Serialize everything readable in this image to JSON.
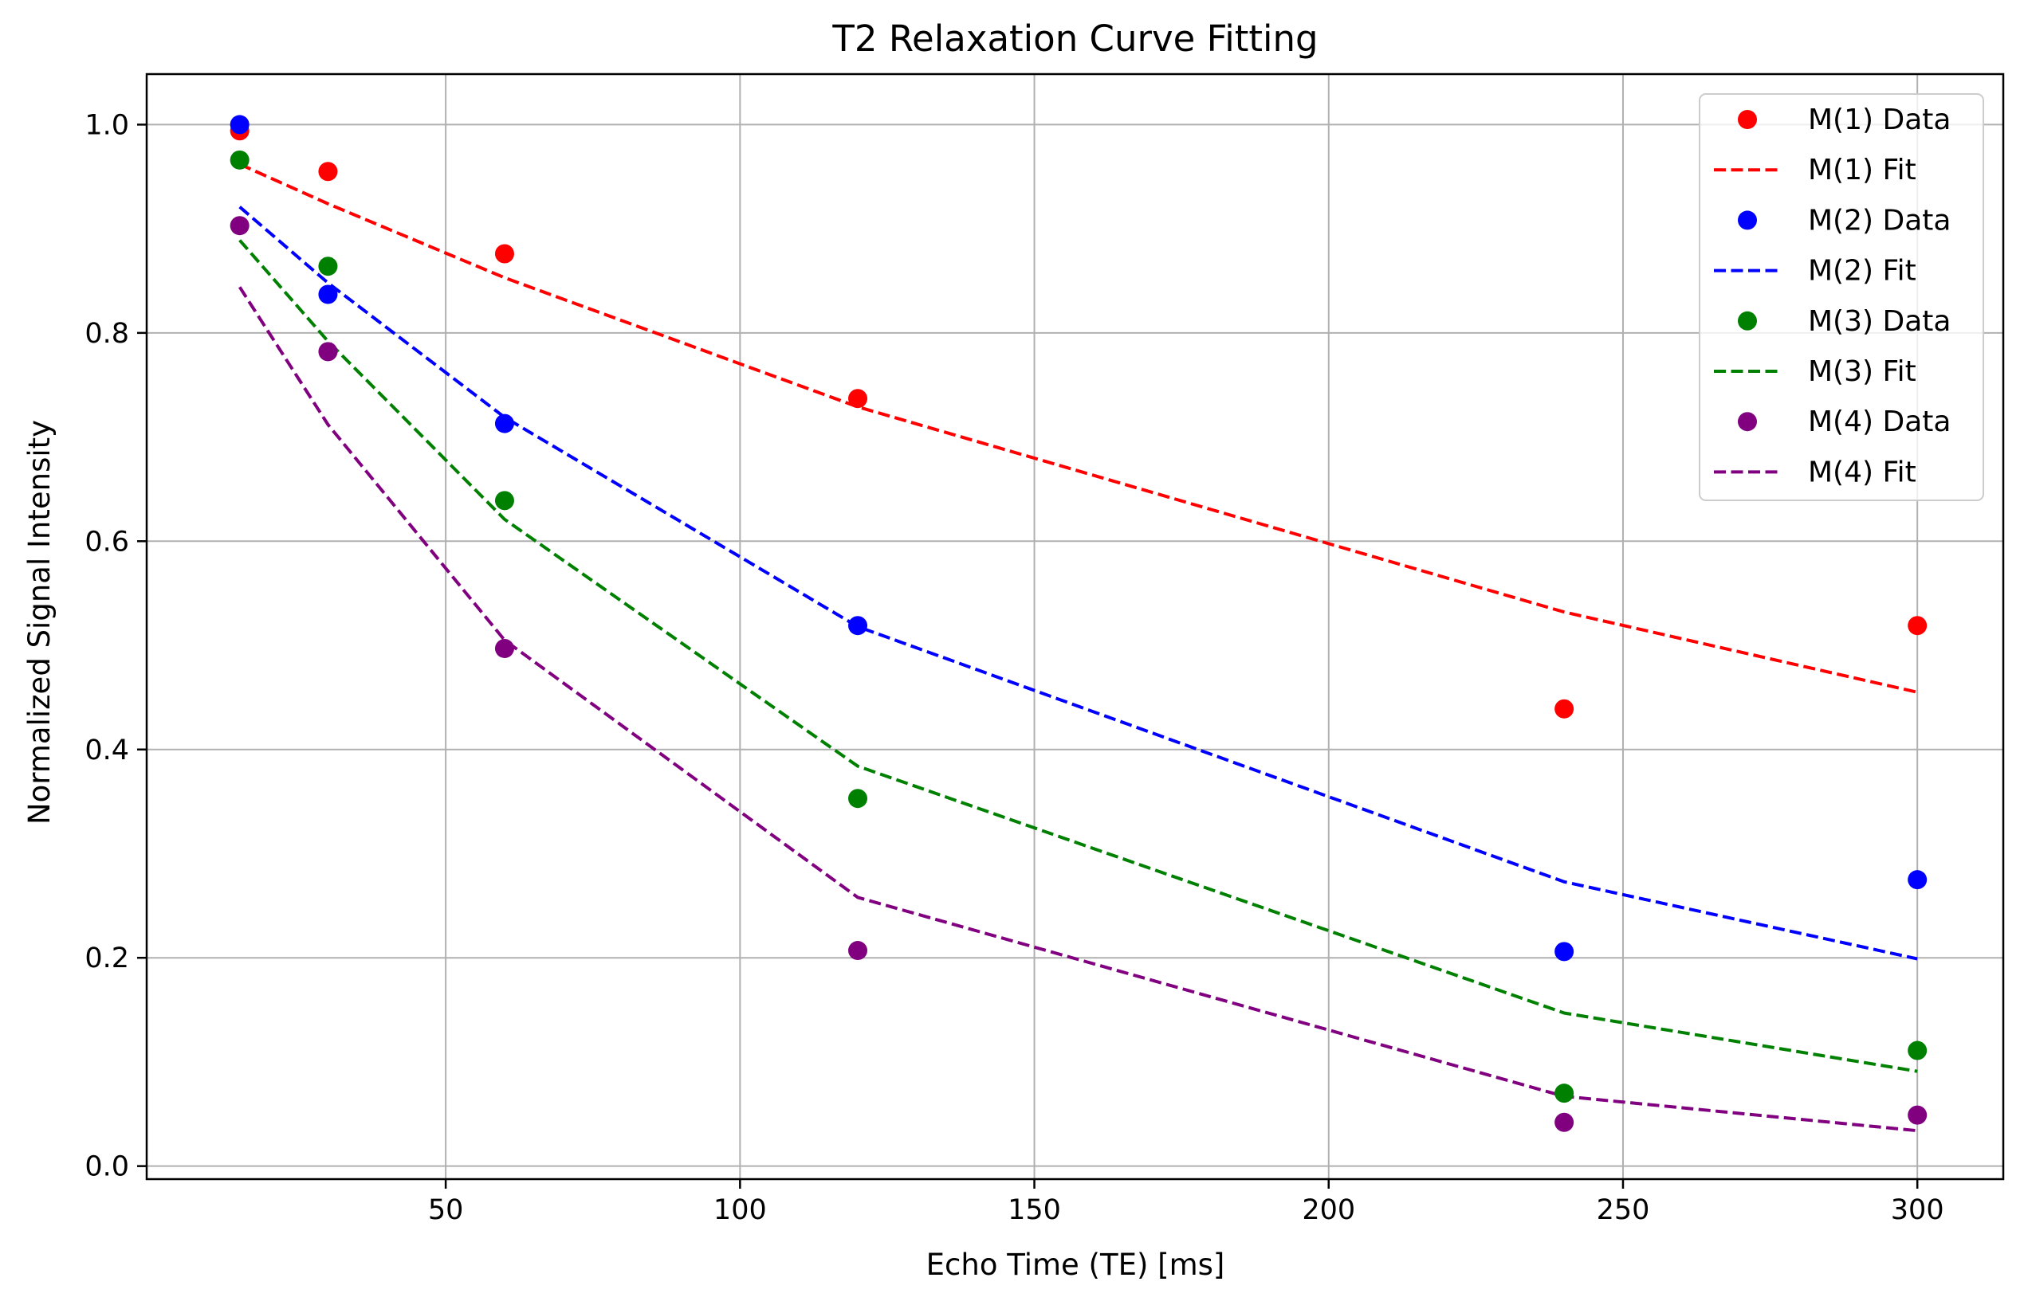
{
  "chart_data": {
    "type": "scatter",
    "title": "T2 Relaxation Curve Fitting",
    "xlabel": "Echo Time (TE) [ms]",
    "ylabel": "Normalized Signal Intensity",
    "xlim": [
      -0.8,
      314.6
    ],
    "ylim": [
      -0.0125,
      1.0485
    ],
    "xticks": [
      50,
      100,
      150,
      200,
      250,
      300
    ],
    "xtick_labels": [
      "50",
      "100",
      "150",
      "200",
      "250",
      "300"
    ],
    "yticks": [
      0.0,
      0.2,
      0.4,
      0.6,
      0.8,
      1.0
    ],
    "ytick_labels": [
      "0.0",
      "0.2",
      "0.4",
      "0.6",
      "0.8",
      "1.0"
    ],
    "grid": true,
    "legend_position": "top-right",
    "x": [
      15,
      30,
      60,
      120,
      240,
      300
    ],
    "series": [
      {
        "group": "M(1)",
        "color": "#ff0000",
        "data_label": "M(1) Data",
        "fit_label": "M(1) Fit",
        "data": [
          0.994,
          0.955,
          0.876,
          0.737,
          0.439,
          0.519
        ],
        "fit": [
          0.962,
          0.924,
          0.853,
          0.729,
          0.532,
          0.455
        ]
      },
      {
        "group": "M(2)",
        "color": "#0000ff",
        "data_label": "M(2) Data",
        "fit_label": "M(2) Fit",
        "data": [
          1.0,
          0.837,
          0.713,
          0.519,
          0.206,
          0.275
        ],
        "fit": [
          0.921,
          0.848,
          0.719,
          0.518,
          0.273,
          0.199
        ]
      },
      {
        "group": "M(3)",
        "color": "#008000",
        "data_label": "M(3) Data",
        "fit_label": "M(3) Fit",
        "data": [
          0.966,
          0.864,
          0.639,
          0.353,
          0.07,
          0.111
        ],
        "fit": [
          0.889,
          0.792,
          0.621,
          0.384,
          0.147,
          0.091
        ]
      },
      {
        "group": "M(4)",
        "color": "#800080",
        "data_label": "M(4) Data",
        "fit_label": "M(4) Fit",
        "data": [
          0.903,
          0.782,
          0.497,
          0.207,
          0.042,
          0.049
        ],
        "fit": [
          0.844,
          0.712,
          0.505,
          0.258,
          0.067,
          0.034
        ]
      }
    ]
  }
}
